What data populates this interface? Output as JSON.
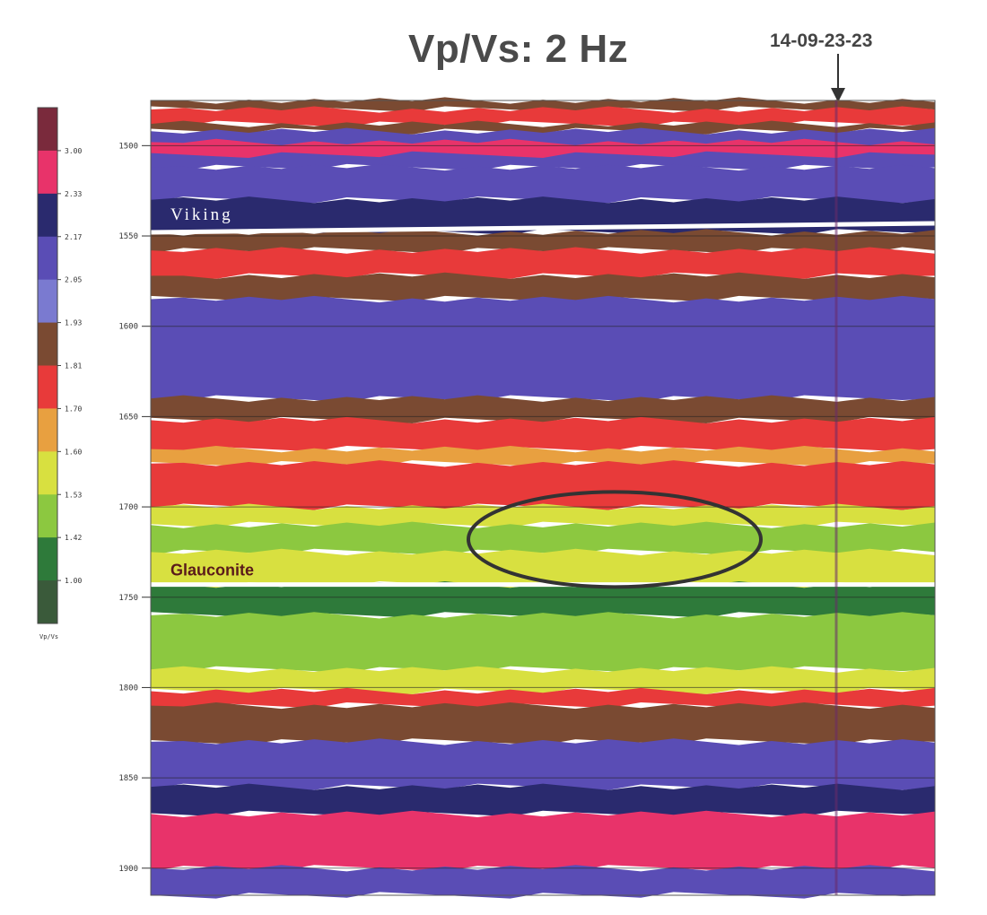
{
  "chart_data": {
    "type": "heatmap",
    "title": "Vp/Vs:  2 Hz",
    "well_marker": "14-09-23-23",
    "y_ticks": [
      1500,
      1550,
      1600,
      1650,
      1700,
      1750,
      1800,
      1850,
      1900
    ],
    "ylim": [
      1475,
      1915
    ],
    "horizons": [
      {
        "name": "Viking",
        "depth": 1548
      },
      {
        "name": "Glauconite",
        "depth": 1743
      }
    ],
    "highlight": {
      "shape": "ellipse",
      "center_depth": 1718
    },
    "colorbar": {
      "label": "Vp/Vs",
      "levels": [
        "3.00",
        "2.33",
        "2.17",
        "2.05",
        "1.93",
        "1.81",
        "1.70",
        "1.60",
        "1.53",
        "1.42",
        "1.00"
      ],
      "colors": [
        "#7a2a3c",
        "#e8336a",
        "#2a2a6e",
        "#5a4db5",
        "#7a7ad0",
        "#7a4a32",
        "#e83a3a",
        "#e8a040",
        "#d8e040",
        "#8cc840",
        "#2e7a3a",
        "#3a5a3a"
      ]
    },
    "bands": [
      {
        "from": 1475,
        "to": 1480,
        "color": "#7a4a32"
      },
      {
        "from": 1480,
        "to": 1488,
        "color": "#e83a3a"
      },
      {
        "from": 1488,
        "to": 1492,
        "color": "#7a4a32"
      },
      {
        "from": 1492,
        "to": 1512,
        "color": "#5a4db5"
      },
      {
        "from": 1498,
        "to": 1505,
        "color": "#e8336a"
      },
      {
        "from": 1512,
        "to": 1530,
        "color": "#5a4db5"
      },
      {
        "from": 1530,
        "to": 1548,
        "color": "#2a2a6e"
      },
      {
        "from": 1548,
        "to": 1558,
        "color": "#7a4a32"
      },
      {
        "from": 1558,
        "to": 1572,
        "color": "#e83a3a"
      },
      {
        "from": 1572,
        "to": 1585,
        "color": "#7a4a32"
      },
      {
        "from": 1585,
        "to": 1640,
        "color": "#5a4db5"
      },
      {
        "from": 1640,
        "to": 1652,
        "color": "#7a4a32"
      },
      {
        "from": 1652,
        "to": 1668,
        "color": "#e83a3a"
      },
      {
        "from": 1668,
        "to": 1676,
        "color": "#e8a040"
      },
      {
        "from": 1676,
        "to": 1700,
        "color": "#e83a3a"
      },
      {
        "from": 1700,
        "to": 1710,
        "color": "#d8e040"
      },
      {
        "from": 1710,
        "to": 1725,
        "color": "#8cc840"
      },
      {
        "from": 1725,
        "to": 1743,
        "color": "#d8e040"
      },
      {
        "from": 1743,
        "to": 1760,
        "color": "#2e7a3a"
      },
      {
        "from": 1760,
        "to": 1790,
        "color": "#8cc840"
      },
      {
        "from": 1790,
        "to": 1802,
        "color": "#d8e040"
      },
      {
        "from": 1802,
        "to": 1810,
        "color": "#e83a3a"
      },
      {
        "from": 1810,
        "to": 1830,
        "color": "#7a4a32"
      },
      {
        "from": 1830,
        "to": 1855,
        "color": "#5a4db5"
      },
      {
        "from": 1855,
        "to": 1870,
        "color": "#2a2a6e"
      },
      {
        "from": 1870,
        "to": 1900,
        "color": "#e8336a"
      },
      {
        "from": 1900,
        "to": 1915,
        "color": "#5a4db5"
      }
    ]
  }
}
